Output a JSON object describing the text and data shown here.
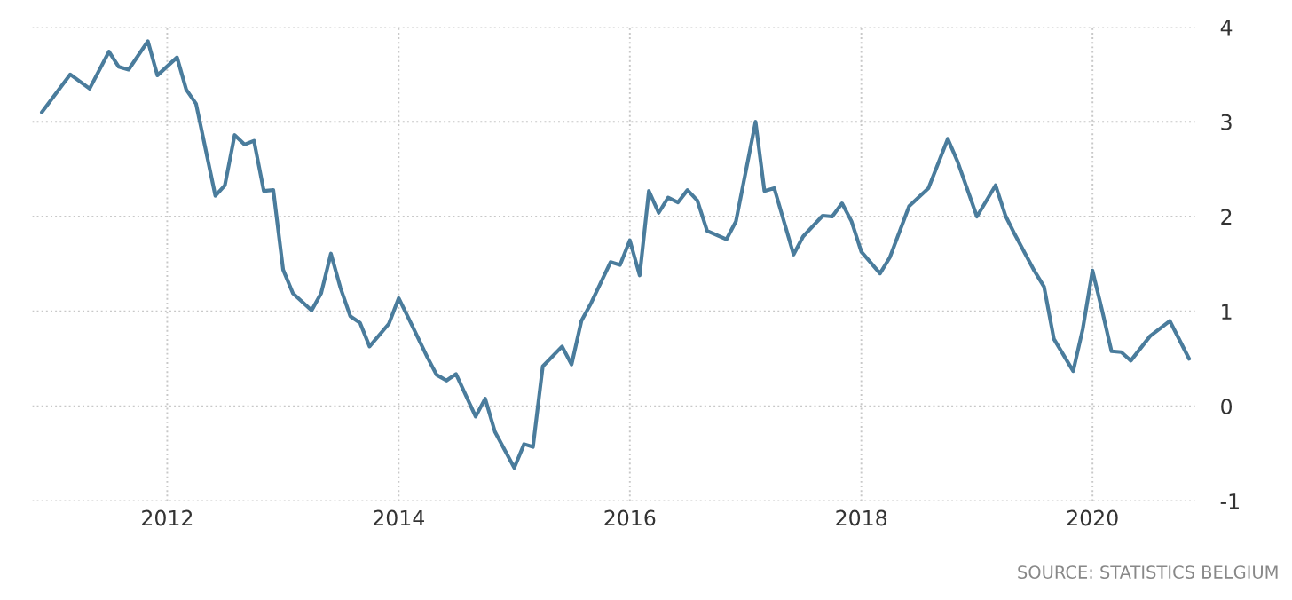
{
  "chart_data": {
    "type": "line",
    "x": [
      "2010-12",
      "2011-03",
      "2011-05",
      "2011-07",
      "2011-08",
      "2011-09",
      "2011-11",
      "2011-12",
      "2012-02",
      "2012-03",
      "2012-04",
      "2012-06",
      "2012-07",
      "2012-08",
      "2012-09",
      "2012-10",
      "2012-11",
      "2012-12",
      "2013-01",
      "2013-02",
      "2013-04",
      "2013-05",
      "2013-06",
      "2013-07",
      "2013-08",
      "2013-09",
      "2013-10",
      "2013-12",
      "2014-01",
      "2014-02",
      "2014-04",
      "2014-05",
      "2014-06",
      "2014-07",
      "2014-09",
      "2014-10",
      "2014-11",
      "2015-01",
      "2015-02",
      "2015-03",
      "2015-04",
      "2015-06",
      "2015-07",
      "2015-08",
      "2015-09",
      "2015-11",
      "2015-12",
      "2016-01",
      "2016-02",
      "2016-03",
      "2016-04",
      "2016-05",
      "2016-06",
      "2016-07",
      "2016-08",
      "2016-09",
      "2016-11",
      "2016-12",
      "2017-02",
      "2017-03",
      "2017-04",
      "2017-06",
      "2017-07",
      "2017-09",
      "2017-10",
      "2017-11",
      "2017-12",
      "2018-01",
      "2018-03",
      "2018-04",
      "2018-06",
      "2018-08",
      "2018-10",
      "2018-11",
      "2019-01",
      "2019-03",
      "2019-04",
      "2019-05",
      "2019-07",
      "2019-08",
      "2019-09",
      "2019-11",
      "2019-12",
      "2020-01",
      "2020-02",
      "2020-03",
      "2020-04",
      "2020-05",
      "2020-07",
      "2020-09",
      "2020-11"
    ],
    "series": [
      {
        "color": "#4a7c9c",
        "values": [
          3.1,
          3.5,
          3.35,
          3.74,
          3.58,
          3.55,
          3.85,
          3.49,
          3.68,
          3.34,
          3.19,
          2.22,
          2.33,
          2.86,
          2.76,
          2.8,
          2.27,
          2.28,
          1.44,
          1.19,
          1.01,
          1.19,
          1.61,
          1.25,
          0.95,
          0.88,
          0.63,
          0.87,
          1.14,
          0.93,
          0.52,
          0.33,
          0.27,
          0.34,
          -0.11,
          0.08,
          -0.27,
          -0.65,
          -0.4,
          -0.43,
          0.42,
          0.63,
          0.44,
          0.9,
          1.09,
          1.52,
          1.49,
          1.75,
          1.38,
          2.27,
          2.04,
          2.2,
          2.15,
          2.28,
          2.17,
          1.85,
          1.76,
          1.95,
          3.0,
          2.27,
          2.3,
          1.6,
          1.79,
          2.01,
          2.0,
          2.14,
          1.95,
          1.63,
          1.4,
          1.57,
          2.11,
          2.3,
          2.82,
          2.58,
          2.0,
          2.33,
          2.01,
          1.81,
          1.43,
          1.26,
          0.71,
          0.37,
          0.81,
          1.43,
          1.0,
          0.58,
          0.57,
          0.48,
          0.74,
          0.9,
          0.5
        ]
      }
    ],
    "xlim": [
      "2010-11",
      "2020-11-20"
    ],
    "xticks": [
      "2012",
      "2014",
      "2016",
      "2018",
      "2020"
    ],
    "ylim": [
      -1,
      4
    ],
    "yticks": [
      -1,
      0,
      1,
      2,
      3,
      4
    ],
    "grid": true,
    "line_style": "solid",
    "annotations": [
      "SOURCE: STATISTICS BELGIUM"
    ]
  }
}
